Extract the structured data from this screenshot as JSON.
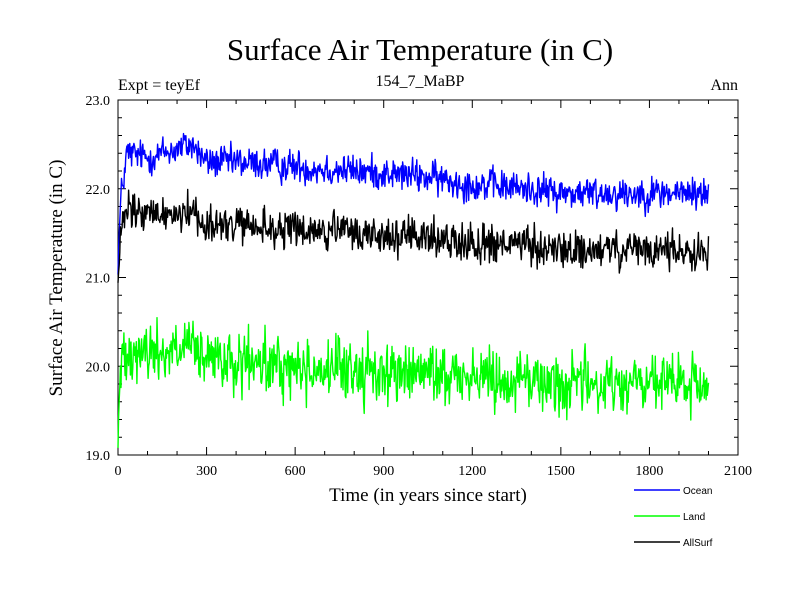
{
  "chart_data": {
    "type": "line",
    "title": "Surface Air Temperature (in C)",
    "subtitle_left": "Expt = teyEf",
    "subtitle_center": "154_7_MaBP",
    "subtitle_right": "Ann",
    "xlabel": "Time (in years since start)",
    "ylabel": "Surface Air Temperature (in C)",
    "xlim": [
      0,
      2100
    ],
    "ylim": [
      19.0,
      23.0
    ],
    "x_ticks": [
      0,
      300,
      600,
      900,
      1200,
      1500,
      1800,
      2100
    ],
    "x_tick_labels": [
      "0",
      "300",
      "600",
      "900",
      "1200",
      "1500",
      "1800",
      "2100"
    ],
    "y_ticks": [
      19.0,
      20.0,
      21.0,
      22.0,
      23.0
    ],
    "y_tick_labels": [
      "19.0",
      "20.0",
      "21.0",
      "22.0",
      "23.0"
    ],
    "x_range": [
      0,
      2000
    ],
    "legend_position": "bottom-right, below plot",
    "series": [
      {
        "name": "Ocean",
        "color": "#0000ff",
        "x_knots": [
          0,
          10,
          30,
          100,
          200,
          250,
          300,
          400,
          600,
          800,
          1000,
          1200,
          1400,
          1500,
          1700,
          1900,
          2000
        ],
        "trend": [
          21.2,
          21.9,
          22.4,
          22.35,
          22.45,
          22.5,
          22.3,
          22.3,
          22.25,
          22.2,
          22.15,
          22.05,
          22.0,
          21.95,
          21.95,
          21.95,
          21.95
        ],
        "noise": 0.12
      },
      {
        "name": "Land",
        "color": "#00ff00",
        "x_knots": [
          0,
          5,
          20,
          100,
          250,
          300,
          500,
          800,
          1000,
          1200,
          1400,
          1500,
          1700,
          1900,
          2000
        ],
        "trend": [
          19.2,
          19.7,
          20.25,
          20.15,
          20.2,
          20.05,
          20.0,
          19.95,
          19.92,
          19.9,
          19.85,
          19.8,
          19.8,
          19.8,
          19.75
        ],
        "noise": 0.22
      },
      {
        "name": "AllSurf",
        "color": "#000000",
        "x_knots": [
          0,
          10,
          30,
          100,
          250,
          300,
          500,
          800,
          1000,
          1200,
          1400,
          1500,
          1700,
          1900,
          2000
        ],
        "trend": [
          20.9,
          21.5,
          21.75,
          21.7,
          21.75,
          21.6,
          21.55,
          21.5,
          21.45,
          21.4,
          21.35,
          21.3,
          21.3,
          21.3,
          21.3
        ],
        "noise": 0.14
      }
    ]
  }
}
